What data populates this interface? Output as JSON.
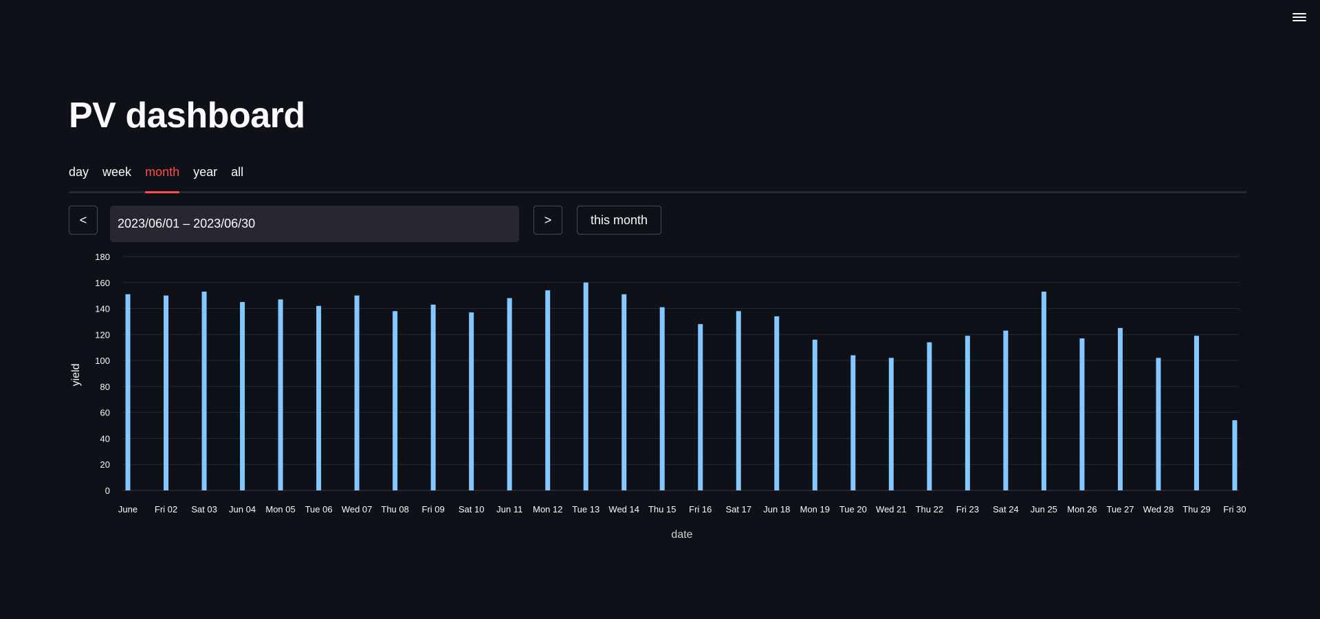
{
  "header": {
    "menu_icon": "hamburger-menu-icon"
  },
  "title": "PV dashboard",
  "tabs": [
    {
      "label": "day",
      "active": false
    },
    {
      "label": "week",
      "active": false
    },
    {
      "label": "month",
      "active": true
    },
    {
      "label": "year",
      "active": false
    },
    {
      "label": "all",
      "active": false
    }
  ],
  "controls": {
    "prev_label": "<",
    "next_label": ">",
    "date_range_value": "2023/06/01 – 2023/06/30",
    "this_month_label": "this month"
  },
  "colors": {
    "bar": "#83c9ff",
    "accent": "#ff4b4b",
    "background": "#0e1117"
  },
  "chart_data": {
    "type": "bar",
    "xlabel": "date",
    "ylabel": "yield",
    "ylim": [
      0,
      180
    ],
    "yticks": [
      0,
      20,
      40,
      60,
      80,
      100,
      120,
      140,
      160,
      180
    ],
    "grid": true,
    "categories": [
      "June",
      "Fri 02",
      "Sat 03",
      "Jun 04",
      "Mon 05",
      "Tue 06",
      "Wed 07",
      "Thu 08",
      "Fri 09",
      "Sat 10",
      "Jun 11",
      "Mon 12",
      "Tue 13",
      "Wed 14",
      "Thu 15",
      "Fri 16",
      "Sat 17",
      "Jun 18",
      "Mon 19",
      "Tue 20",
      "Wed 21",
      "Thu 22",
      "Fri 23",
      "Sat 24",
      "Jun 25",
      "Mon 26",
      "Tue 27",
      "Wed 28",
      "Thu 29",
      "Fri 30"
    ],
    "values": [
      151,
      150,
      153,
      145,
      147,
      142,
      150,
      138,
      143,
      137,
      148,
      154,
      160,
      151,
      141,
      128,
      138,
      134,
      116,
      104,
      102,
      114,
      119,
      123,
      153,
      117,
      125,
      102,
      119,
      54
    ]
  }
}
